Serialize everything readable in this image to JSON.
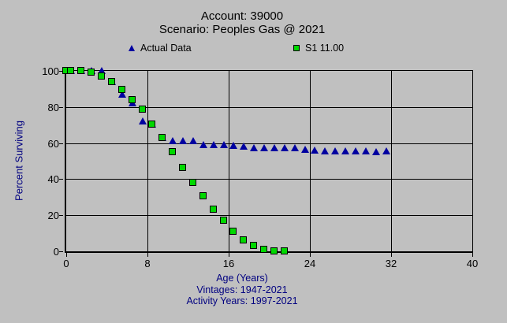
{
  "window": {
    "background": "#c0c0c0"
  },
  "chart": {
    "title": "Account: 39000",
    "subtitle": "Scenario: Peoples Gas @ 2021",
    "legend": [
      {
        "label": "Actual Data",
        "marker": "triangle",
        "color": "#0000a0"
      },
      {
        "label": "S1 11.00",
        "marker": "square",
        "color": "#00d800"
      }
    ],
    "ylabel": "Percent Surviving",
    "xlabel": "Age (Years)",
    "caption_line1": "Vintages: 1947-2021",
    "caption_line2": "Activity Years: 1997-2021"
  },
  "chart_data": {
    "type": "scatter",
    "title": "Account: 39000",
    "subtitle": "Scenario: Peoples Gas @ 2021",
    "xlabel": "Age (Years)",
    "ylabel": "Percent Surviving",
    "xlim": [
      0,
      40
    ],
    "ylim": [
      0,
      100
    ],
    "x_ticks": [
      0,
      8,
      16,
      24,
      32,
      40
    ],
    "y_ticks": [
      0,
      20,
      40,
      60,
      80,
      100
    ],
    "grid": true,
    "legend_position": "top",
    "grid_color": "#000000",
    "background_color": "#c0c0c0",
    "series": [
      {
        "name": "Actual Data",
        "marker": "triangle",
        "color": "#0000a0",
        "points": [
          [
            0.5,
            100
          ],
          [
            1.5,
            100
          ],
          [
            2.5,
            100
          ],
          [
            3.5,
            100
          ],
          [
            4.5,
            94
          ],
          [
            5.5,
            87
          ],
          [
            6.5,
            82
          ],
          [
            7.5,
            72
          ],
          [
            8.5,
            70.5
          ],
          [
            9.5,
            63
          ],
          [
            10.5,
            61
          ],
          [
            11.5,
            61
          ],
          [
            12.5,
            61
          ],
          [
            13.5,
            59
          ],
          [
            14.5,
            59
          ],
          [
            15.5,
            59
          ],
          [
            16.5,
            58.5
          ],
          [
            17.5,
            58
          ],
          [
            18.5,
            57
          ],
          [
            19.5,
            57
          ],
          [
            20.5,
            57
          ],
          [
            21.5,
            57
          ],
          [
            22.5,
            57
          ],
          [
            23.5,
            56.5
          ],
          [
            24.5,
            56
          ],
          [
            25.5,
            55.5
          ],
          [
            26.5,
            55.5
          ],
          [
            27.5,
            55.5
          ],
          [
            28.5,
            55.5
          ],
          [
            29.5,
            55.5
          ],
          [
            30.5,
            55
          ],
          [
            31.5,
            55.5
          ]
        ]
      },
      {
        "name": "S1 11.00",
        "marker": "square",
        "color": "#00d800",
        "points": [
          [
            0,
            100
          ],
          [
            0.5,
            100
          ],
          [
            1.5,
            100
          ],
          [
            2.5,
            99
          ],
          [
            3.5,
            97
          ],
          [
            4.5,
            94
          ],
          [
            5.5,
            89.5
          ],
          [
            6.5,
            84
          ],
          [
            7.5,
            78.5
          ],
          [
            8.5,
            70.5
          ],
          [
            9.5,
            63
          ],
          [
            10.5,
            55
          ],
          [
            11.5,
            46.5
          ],
          [
            12.5,
            38
          ],
          [
            13.5,
            30.5
          ],
          [
            14.5,
            23
          ],
          [
            15.5,
            17
          ],
          [
            16.5,
            11
          ],
          [
            17.5,
            6
          ],
          [
            18.5,
            3
          ],
          [
            19.5,
            1
          ],
          [
            20.5,
            0
          ],
          [
            21.5,
            0
          ]
        ]
      }
    ]
  }
}
